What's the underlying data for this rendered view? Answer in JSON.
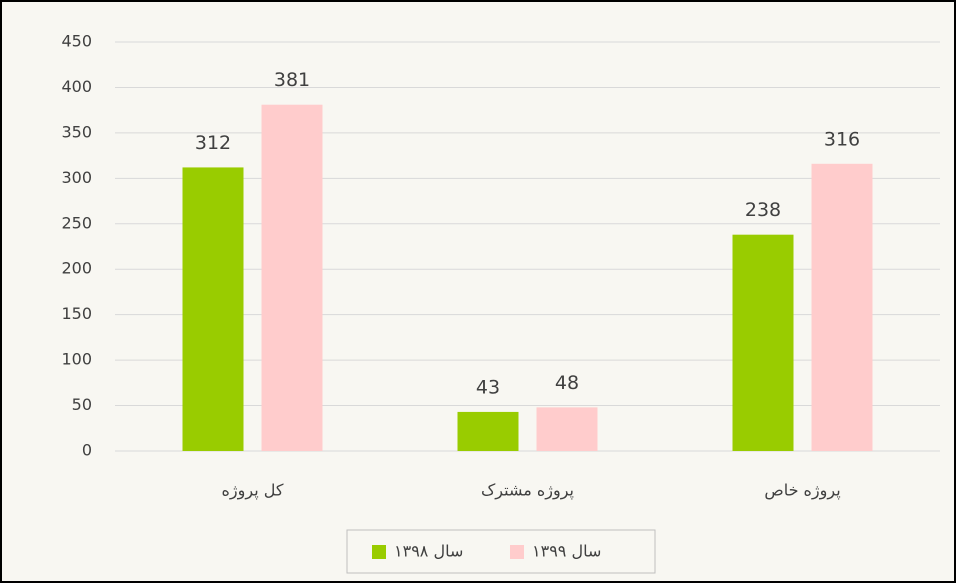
{
  "chart_data": {
    "type": "bar",
    "categories": [
      "کل پروژه",
      "پروژه مشترک",
      "پروژه خاص"
    ],
    "series": [
      {
        "name": "سال ۱۳۹۸",
        "color": "#99cc00",
        "values": [
          312,
          43,
          238
        ]
      },
      {
        "name": "سال ۱۳۹۹",
        "color": "#ffcccc",
        "values": [
          381,
          48,
          316
        ]
      }
    ],
    "ylim": [
      0,
      450
    ],
    "yticks": [
      0,
      50,
      100,
      150,
      200,
      250,
      300,
      350,
      400,
      450
    ],
    "grid": true,
    "legend": "bottom"
  }
}
